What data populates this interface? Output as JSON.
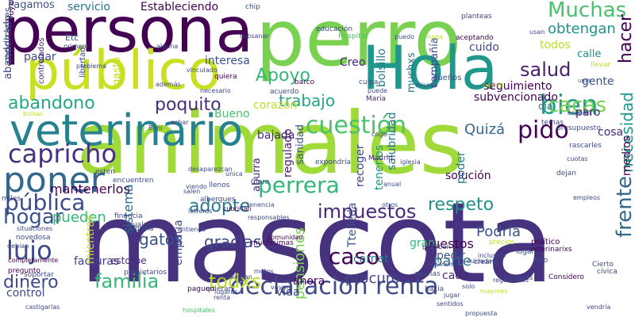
{
  "palette": {
    "background": "#ffffff",
    "dark_purple": "#440154",
    "indigo": "#46327e",
    "blue": "#365c8d",
    "steel": "#277f8e",
    "teal": "#1fa187",
    "green": "#4ac16d",
    "lime": "#a0da39",
    "yellow": "#fde725"
  },
  "words": [
    {
      "text": "mascota",
      "color": "#46327e",
      "vertical": false
    },
    {
      "text": "animales",
      "color": "#a0da39",
      "vertical": false
    },
    {
      "text": "perro",
      "color": "#7ad151",
      "vertical": false
    },
    {
      "text": "persona",
      "color": "#440154",
      "vertical": false
    },
    {
      "text": "Hola",
      "color": "#1f988b",
      "vertical": false
    },
    {
      "text": "público",
      "color": "#c8e020",
      "vertical": false
    },
    {
      "text": "veterinario",
      "color": "#26828e",
      "vertical": false
    },
    {
      "text": "poner",
      "color": "#31688e",
      "vertical": false
    },
    {
      "text": "capricho",
      "color": "#46327e",
      "vertical": false
    },
    {
      "text": "cuestión",
      "color": "#4ac16d",
      "vertical": false
    },
    {
      "text": "perrera",
      "color": "#35b779",
      "vertical": false
    },
    {
      "text": "declaración renta",
      "color": "#3e4989",
      "vertical": false
    },
    {
      "text": "pública",
      "color": "#3e4989",
      "vertical": false
    },
    {
      "text": "impuestos",
      "color": "#482878",
      "vertical": false
    },
    {
      "text": "adopte",
      "color": "#2a788e",
      "vertical": false
    },
    {
      "text": "respeto",
      "color": "#21918c",
      "vertical": false
    },
    {
      "text": "hogar",
      "color": "#3b528b",
      "vertical": false
    },
    {
      "text": "lujo",
      "color": "#3e4989",
      "vertical": false
    },
    {
      "text": "familia",
      "color": "#35b779",
      "vertical": false
    },
    {
      "text": "todxs",
      "color": "#bddf26",
      "vertical": false
    },
    {
      "text": "dinero",
      "color": "#3e4989",
      "vertical": false
    },
    {
      "text": "bien",
      "color": "#1fa187",
      "vertical": false
    },
    {
      "text": "abandono",
      "color": "#22a884",
      "vertical": false
    },
    {
      "text": "poquito",
      "color": "#472d7b",
      "vertical": false
    },
    {
      "text": "pido",
      "color": "#440154",
      "vertical": false
    },
    {
      "text": "Apoyo",
      "color": "#35b779",
      "vertical": false
    },
    {
      "text": "trabajo",
      "color": "#22a884",
      "vertical": false
    },
    {
      "text": "salud",
      "color": "#481f70",
      "vertical": false
    },
    {
      "text": "Muchas",
      "color": "#4ac16d",
      "vertical": false
    },
    {
      "text": "obtengan",
      "color": "#21918c",
      "vertical": false
    },
    {
      "text": "cacas",
      "color": "#7ad151",
      "vertical": false
    },
    {
      "text": "frente",
      "color": "#31688e",
      "vertical": true
    },
    {
      "text": "hacer",
      "color": "#440154",
      "vertical": true
    },
    {
      "text": "necesidad",
      "color": "#1f988b",
      "vertical": true
    },
    {
      "text": "Quizá",
      "color": "#31688e",
      "vertical": false
    },
    {
      "text": "caso",
      "color": "#440154",
      "vertical": false
    },
    {
      "text": "pensiones",
      "color": "#7ad151",
      "vertical": true
    },
    {
      "text": "Podría",
      "color": "#3b528b",
      "vertical": false
    },
    {
      "text": "gracias",
      "color": "#3e4989",
      "vertical": false
    },
    {
      "text": "procuro",
      "color": "#414487",
      "vertical": false
    },
    {
      "text": "gatos",
      "color": "#3b528b",
      "vertical": false
    },
    {
      "text": "pueden",
      "color": "#35b779",
      "vertical": false
    },
    {
      "text": "parte",
      "color": "#2c728e",
      "vertical": false
    },
    {
      "text": "puestos",
      "color": "#440154",
      "vertical": false
    },
    {
      "text": "pedir",
      "color": "#3b528b",
      "vertical": false
    },
    {
      "text": "solución",
      "color": "#440154",
      "vertical": false
    },
    {
      "text": "gran",
      "color": "#35b779",
      "vertical": false
    },
    {
      "text": "carnet",
      "color": "#2a788e",
      "vertical": false
    },
    {
      "text": "cada",
      "color": "#482878",
      "vertical": false
    },
    {
      "text": "mantenerlos",
      "color": "#440154",
      "vertical": false
    },
    {
      "text": "facturas",
      "color": "#414487",
      "vertical": false
    },
    {
      "text": "control",
      "color": "#3e4989",
      "vertical": false
    },
    {
      "text": "ahora",
      "color": "#440154",
      "vertical": false
    },
    {
      "text": "vida",
      "color": "#3e4989",
      "vertical": false
    },
    {
      "text": "Bueno",
      "color": "#4ac16d",
      "vertical": false
    },
    {
      "text": "bajada",
      "color": "#482878",
      "vertical": false
    },
    {
      "text": "seguimiento",
      "color": "#440154",
      "vertical": false
    },
    {
      "text": "interesa",
      "color": "#3b528b",
      "vertical": false
    },
    {
      "text": "pagar",
      "color": "#3e4989",
      "vertical": false
    },
    {
      "text": "Creo",
      "color": "#482878",
      "vertical": false
    },
    {
      "text": "gente",
      "color": "#3b528b",
      "vertical": false
    },
    {
      "text": "calle",
      "color": "#21918c",
      "vertical": false
    },
    {
      "text": "cuido",
      "color": "#3e4989",
      "vertical": false
    },
    {
      "text": "todos",
      "color": "#bddf26",
      "vertical": false
    },
    {
      "text": "Pagamos",
      "color": "#3b528b",
      "vertical": false
    },
    {
      "text": "servicio",
      "color": "#2c728e",
      "vertical": false
    },
    {
      "text": "Estableciendo",
      "color": "#440154",
      "vertical": false
    },
    {
      "text": "subvencionado",
      "color": "#440154",
      "vertical": false
    },
    {
      "text": "paro",
      "color": "#482878",
      "vertical": false
    },
    {
      "text": "cosa",
      "color": "#482878",
      "vertical": false
    },
    {
      "text": "día",
      "color": "#2a788e",
      "vertical": false
    },
    {
      "text": "corazón",
      "color": "#bddf26",
      "vertical": false
    },
    {
      "text": "sistema",
      "color": "#31688e",
      "vertical": true
    },
    {
      "text": "empatía",
      "color": "#3e4989",
      "vertical": true
    },
    {
      "text": "estorbe",
      "color": "#472d7b",
      "vertical": false
    },
    {
      "text": "mientras",
      "color": "#bddf26",
      "vertical": true
    },
    {
      "text": "salubridad",
      "color": "#2a788e",
      "vertical": true
    },
    {
      "text": "tenerlos",
      "color": "#1f988b",
      "vertical": true
    },
    {
      "text": "regulado",
      "color": "#481f70",
      "vertical": true
    },
    {
      "text": "sanidad",
      "color": "#3b528b",
      "vertical": true
    },
    {
      "text": "aburra",
      "color": "#482878",
      "vertical": true
    },
    {
      "text": "poder",
      "color": "#2a788e",
      "vertical": true
    },
    {
      "text": "recoger",
      "color": "#3e4989",
      "vertical": true
    },
    {
      "text": "Ttelleda",
      "color": "#3b528b",
      "vertical": true
    },
    {
      "text": "medios",
      "color": "#440154",
      "vertical": true
    },
    {
      "text": "bolsillo",
      "color": "#2a788e",
      "vertical": true
    },
    {
      "text": "muchxs",
      "color": "#2a788e",
      "vertical": true
    },
    {
      "text": "compañía",
      "color": "#3e4989",
      "vertical": true
    },
    {
      "text": "gasto",
      "color": "#bddf26",
      "vertical": true
    },
    {
      "text": "abandonado",
      "color": "#3e4989",
      "vertical": true
    },
    {
      "text": "condiciones",
      "color": "#3b528b",
      "vertical": true
    },
    {
      "text": "contribuya",
      "color": "#440154",
      "vertical": true
    },
    {
      "text": "controlados",
      "color": "#482878",
      "vertical": true
    },
    {
      "text": "libertad",
      "color": "#3e4989",
      "vertical": true
    },
    {
      "text": "Etc",
      "color": "#3b528b",
      "vertical": false
    },
    {
      "text": "chip",
      "color": "#3b528b",
      "vertical": false
    },
    {
      "text": "Madrid",
      "color": "#482878",
      "vertical": false
    },
    {
      "text": "María",
      "color": "#482878",
      "vertical": false
    },
    {
      "text": "Claro",
      "color": "#3e4989",
      "vertical": false
    },
    {
      "text": "dueños",
      "color": "#3e4989",
      "vertical": false
    },
    {
      "text": "acuerdo",
      "color": "#3e4989",
      "vertical": false
    },
    {
      "text": "quiera",
      "color": "#440154",
      "vertical": false
    },
    {
      "text": "barco",
      "color": "#440154",
      "vertical": false
    },
    {
      "text": "vinculado",
      "color": "#3e4989",
      "vertical": false
    },
    {
      "text": "educación",
      "color": "#3e4989",
      "vertical": false
    },
    {
      "text": "Hospital",
      "color": "#4ac16d",
      "vertical": false
    },
    {
      "text": "aceptando",
      "color": "#440154",
      "vertical": false
    },
    {
      "text": "planteas",
      "color": "#3e4989",
      "vertical": false
    },
    {
      "text": "muchisimas",
      "color": "#440154",
      "vertical": false
    },
    {
      "text": "comunidad",
      "color": "#440154",
      "vertical": false
    },
    {
      "text": "político",
      "color": "#440154",
      "vertical": false
    },
    {
      "text": "veterinarixs",
      "color": "#440154",
      "vertical": false
    },
    {
      "text": "lugar",
      "color": "#3e4989",
      "vertical": false
    },
    {
      "text": "tipo",
      "color": "#3e4989",
      "vertical": false
    },
    {
      "text": "precios",
      "color": "#bddf26",
      "vertical": false
    },
    {
      "text": "Cierto",
      "color": "#3e4989",
      "vertical": false
    },
    {
      "text": "cívica",
      "color": "#3e4989",
      "vertical": false
    },
    {
      "text": "Considero",
      "color": "#440154",
      "vertical": false
    },
    {
      "text": "parques",
      "color": "#3e4989",
      "vertical": false
    },
    {
      "text": "mayores",
      "color": "#bddf26",
      "vertical": false
    },
    {
      "text": "apenas",
      "color": "#3e4989",
      "vertical": false
    },
    {
      "text": "hacia",
      "color": "#3e4989",
      "vertical": false
    },
    {
      "text": "jugar",
      "color": "#3e4989",
      "vertical": false
    },
    {
      "text": "solo",
      "color": "#3e4989",
      "vertical": false
    },
    {
      "text": "crearía",
      "color": "#3e4989",
      "vertical": false
    },
    {
      "text": "motos",
      "color": "#3e4989",
      "vertical": false
    },
    {
      "text": "vayan",
      "color": "#3e4989",
      "vertical": false
    },
    {
      "text": "quieran",
      "color": "#3e4989",
      "vertical": false
    },
    {
      "text": "paguen",
      "color": "#440154",
      "vertical": false
    },
    {
      "text": "renta",
      "color": "#3e4989",
      "vertical": false
    },
    {
      "text": "hospitales",
      "color": "#4ac16d",
      "vertical": false
    },
    {
      "text": "financia",
      "color": "#3e4989",
      "vertical": false
    },
    {
      "text": "cuales",
      "color": "#3e4989",
      "vertical": false
    },
    {
      "text": "forma",
      "color": "#3e4989",
      "vertical": false
    },
    {
      "text": "completamente",
      "color": "#440154",
      "vertical": false
    },
    {
      "text": "pregunto",
      "color": "#440154",
      "vertical": false
    },
    {
      "text": "soportar",
      "color": "#3e4989",
      "vertical": false
    },
    {
      "text": "castigarlas",
      "color": "#3e4989",
      "vertical": false
    },
    {
      "text": "situaciones",
      "color": "#3e4989",
      "vertical": false
    },
    {
      "text": "debían",
      "color": "#3e4989",
      "vertical": false
    },
    {
      "text": "novedosa",
      "color": "#3e4989",
      "vertical": false
    },
    {
      "text": "miles",
      "color": "#3e4989",
      "vertical": false
    },
    {
      "text": "esten",
      "color": "#3e4989",
      "vertical": false
    },
    {
      "text": "encuentren",
      "color": "#3e4989",
      "vertical": false
    },
    {
      "text": "bolsas",
      "color": "#bddf26",
      "vertical": false
    },
    {
      "text": "además",
      "color": "#3e4989",
      "vertical": false
    },
    {
      "text": "problema",
      "color": "#3e4989",
      "vertical": false
    },
    {
      "text": "primero",
      "color": "#3e4989",
      "vertical": false
    },
    {
      "text": "alguna",
      "color": "#3e4989",
      "vertical": false
    },
    {
      "text": "subsanar",
      "color": "#3e4989",
      "vertical": false
    },
    {
      "text": "puedo",
      "color": "#3e4989",
      "vertical": false
    },
    {
      "text": "haga",
      "color": "#bddf26",
      "vertical": false
    },
    {
      "text": "usan",
      "color": "#3e4989",
      "vertical": false
    },
    {
      "text": "misma",
      "color": "#3e4989",
      "vertical": false
    },
    {
      "text": "casilla",
      "color": "#bddf26",
      "vertical": false
    },
    {
      "text": "unxs",
      "color": "#3e4989",
      "vertical": false
    },
    {
      "text": "llevar",
      "color": "#bddf26",
      "vertical": false
    },
    {
      "text": "culpa",
      "color": "#3e4989",
      "vertical": false
    },
    {
      "text": "puede",
      "color": "#3e4989",
      "vertical": false
    },
    {
      "text": "temas",
      "color": "#3e4989",
      "vertical": false
    },
    {
      "text": "presupuesto",
      "color": "#3e4989",
      "vertical": false
    },
    {
      "text": "rascarles",
      "color": "#3e4989",
      "vertical": false
    },
    {
      "text": "esperar",
      "color": "#3e4989",
      "vertical": false
    },
    {
      "text": "coge",
      "color": "#3e4989",
      "vertical": false
    },
    {
      "text": "cuotas",
      "color": "#3e4989",
      "vertical": false
    },
    {
      "text": "dejan",
      "color": "#3e4989",
      "vertical": false
    },
    {
      "text": "expondría",
      "color": "#3e4989",
      "vertical": false
    },
    {
      "text": "iglesia",
      "color": "#3e4989",
      "vertical": false
    },
    {
      "text": "anual",
      "color": "#3e4989",
      "vertical": false
    },
    {
      "text": "responsables",
      "color": "#3e4989",
      "vertical": false
    },
    {
      "text": "albergues",
      "color": "#3e4989",
      "vertical": false
    },
    {
      "text": "llenos",
      "color": "#3e4989",
      "vertical": false
    },
    {
      "text": "única",
      "color": "#3e4989",
      "vertical": false
    },
    {
      "text": "echar",
      "color": "#3e4989",
      "vertical": false
    },
    {
      "text": "empleos",
      "color": "#3e4989",
      "vertical": false
    },
    {
      "text": "entiendo",
      "color": "#3e4989",
      "vertical": false
    },
    {
      "text": "viendo",
      "color": "#3e4989",
      "vertical": false
    },
    {
      "text": "letreros",
      "color": "#3e4989",
      "vertical": false
    },
    {
      "text": "cubrirían",
      "color": "#440154",
      "vertical": false
    },
    {
      "text": "prohiben",
      "color": "#3e4989",
      "vertical": false
    },
    {
      "text": "incivismo",
      "color": "#3e4989",
      "vertical": false
    },
    {
      "text": "inclusivo",
      "color": "#3e4989",
      "vertical": false
    },
    {
      "text": "registrados",
      "color": "#3e4989",
      "vertical": false
    },
    {
      "text": "sentidos",
      "color": "#3e4989",
      "vertical": false
    },
    {
      "text": "propuesta",
      "color": "#3e4989",
      "vertical": false
    },
    {
      "text": "vendría",
      "color": "#3e4989",
      "vertical": false
    },
    {
      "text": "propietarios",
      "color": "#3e4989",
      "vertical": false
    },
    {
      "text": "empleyaran",
      "color": "#3e4989",
      "vertical": false
    },
    {
      "text": "salen",
      "color": "#3e4989",
      "vertical": false
    },
    {
      "text": "tenencia",
      "color": "#3e4989",
      "vertical": false
    },
    {
      "text": "lugares",
      "color": "#3e4989",
      "vertical": false
    },
    {
      "text": "desaparezcan",
      "color": "#3e4989",
      "vertical": false
    },
    {
      "text": "necesario",
      "color": "#3e4989",
      "vertical": false
    },
    {
      "text": "cuidados",
      "color": "#3e4989",
      "vertical": false
    },
    {
      "text": "otros",
      "color": "#3e4989",
      "vertical": false
    },
    {
      "text": "Bimi",
      "color": "#3e4989",
      "vertical": false
    }
  ]
}
